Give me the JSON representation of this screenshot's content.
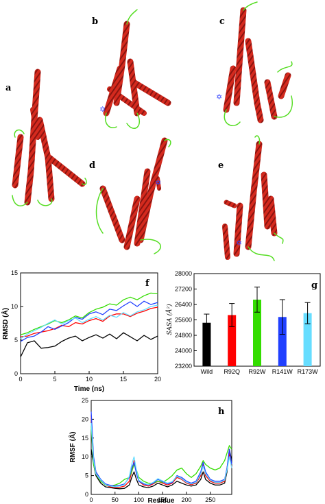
{
  "panel_labels": {
    "a": "a",
    "b": "b",
    "c": "c",
    "d": "d",
    "e": "e",
    "f": "f",
    "g": "g",
    "h": "h"
  },
  "colors": {
    "wild": "#000000",
    "r92q": "#ff0000",
    "r92w": "#33dd00",
    "r141w": "#2040ff",
    "r173w": "#66ddff",
    "helix": "#d42a1e",
    "loop": "#55dd22",
    "mark": "#3344ff"
  },
  "icons": {
    "structure": "protein-ribbon-icon",
    "mutation": "mutation-star-icon"
  },
  "chart_data": [
    {
      "id": "rmsd",
      "type": "line",
      "xlabel": "Time (ns)",
      "ylabel": "RMSD (Å)",
      "xlim": [
        0,
        20
      ],
      "ylim": [
        0,
        15
      ],
      "xticks": [
        0,
        5,
        10,
        15,
        20
      ],
      "yticks": [
        0,
        5,
        10,
        15
      ],
      "grid": false,
      "x": [
        0,
        1,
        2,
        3,
        4,
        5,
        6,
        7,
        8,
        9,
        10,
        11,
        12,
        13,
        14,
        15,
        16,
        17,
        18,
        19,
        20
      ],
      "series": [
        {
          "name": "Wild",
          "color": "#000000",
          "values": [
            2.5,
            4.6,
            4.9,
            3.8,
            3.9,
            4.1,
            4.8,
            5.3,
            5.6,
            4.9,
            5.4,
            5.8,
            5.3,
            5.9,
            5.2,
            6.1,
            5.5,
            4.9,
            5.7,
            5.1,
            5.6
          ]
        },
        {
          "name": "R92Q",
          "color": "#ff0000",
          "values": [
            5.5,
            5.6,
            6.0,
            6.2,
            6.4,
            6.7,
            7.2,
            7.0,
            7.6,
            7.4,
            7.9,
            8.2,
            7.8,
            8.6,
            8.9,
            8.9,
            8.5,
            9.0,
            9.3,
            9.7,
            9.9
          ]
        },
        {
          "name": "R92W",
          "color": "#33dd00",
          "values": [
            5.8,
            6.1,
            6.6,
            7.0,
            7.4,
            7.9,
            7.6,
            8.0,
            8.6,
            8.3,
            9.1,
            9.6,
            9.9,
            10.4,
            10.2,
            11.0,
            11.4,
            11.0,
            11.6,
            12.0,
            11.9
          ]
        },
        {
          "name": "R141W",
          "color": "#2040ff",
          "values": [
            4.8,
            5.4,
            5.6,
            6.2,
            7.0,
            6.6,
            7.1,
            7.6,
            8.4,
            8.1,
            8.9,
            9.2,
            8.8,
            9.6,
            9.4,
            10.1,
            10.7,
            10.0,
            10.8,
            10.3,
            10.6
          ]
        },
        {
          "name": "R173W",
          "color": "#66ddff",
          "values": [
            5.2,
            5.9,
            6.4,
            6.9,
            7.5,
            8.0,
            7.4,
            7.9,
            8.3,
            7.6,
            8.1,
            8.5,
            8.0,
            8.7,
            8.4,
            9.1,
            8.6,
            9.2,
            9.5,
            10.0,
            10.2
          ]
        }
      ]
    },
    {
      "id": "sasa",
      "type": "bar",
      "ylabel": "SASA (Å²)",
      "ylim": [
        23200,
        28000
      ],
      "yticks": [
        23200,
        24000,
        24800,
        25600,
        26400,
        27200,
        28000
      ],
      "categories": [
        "Wild",
        "R92Q",
        "R92W",
        "R141W",
        "R173W"
      ],
      "values": [
        25450,
        25850,
        26650,
        25750,
        25950
      ],
      "errors": [
        450,
        600,
        650,
        900,
        550
      ],
      "colors": [
        "#000000",
        "#ff0000",
        "#33dd00",
        "#2040ff",
        "#66ddff"
      ]
    },
    {
      "id": "rmsf",
      "type": "line",
      "xlabel": "Residue",
      "ylabel": "RMSF (Å)",
      "xlim": [
        0,
        295
      ],
      "ylim": [
        0,
        25
      ],
      "xticks": [
        0,
        50,
        100,
        150,
        200,
        250
      ],
      "yticks": [
        0,
        5,
        10,
        15,
        20,
        25
      ],
      "grid": false,
      "x": [
        0,
        5,
        10,
        20,
        30,
        40,
        50,
        60,
        70,
        80,
        85,
        90,
        95,
        100,
        110,
        120,
        130,
        140,
        150,
        160,
        170,
        180,
        190,
        200,
        210,
        220,
        230,
        235,
        240,
        250,
        260,
        270,
        280,
        285,
        290,
        295
      ],
      "series": [
        {
          "name": "Wild",
          "color": "#000000",
          "values": [
            12,
            8,
            5,
            3,
            2,
            1.8,
            1.6,
            1.5,
            1.6,
            2.5,
            4.5,
            6,
            4,
            2.5,
            2,
            1.8,
            2.2,
            3,
            2.5,
            2,
            2.5,
            3.5,
            3,
            2.5,
            2.2,
            2.5,
            4,
            6,
            4,
            3,
            2.5,
            2.5,
            3,
            6,
            12,
            9
          ]
        },
        {
          "name": "R92Q",
          "color": "#ff0000",
          "values": [
            21,
            9,
            6,
            3.5,
            2.5,
            2,
            1.8,
            1.9,
            2.2,
            3.5,
            6,
            9,
            6,
            3.5,
            2.5,
            2.2,
            2.8,
            3.5,
            3,
            2.5,
            3,
            4.5,
            4,
            3,
            2.6,
            3,
            5,
            8,
            5,
            3.5,
            3,
            3,
            3.5,
            7,
            11,
            7
          ]
        },
        {
          "name": "R92W",
          "color": "#33dd00",
          "values": [
            18,
            8,
            5.5,
            3.5,
            2.5,
            2.2,
            2.5,
            3,
            4,
            4.5,
            6,
            8,
            6.5,
            4.5,
            3.5,
            3,
            3,
            3.5,
            3.2,
            4,
            5,
            6.5,
            7,
            5.5,
            4.5,
            5.5,
            7.5,
            9,
            8,
            7,
            6.5,
            7,
            9,
            11,
            13,
            12
          ]
        },
        {
          "name": "R141W",
          "color": "#2040ff",
          "values": [
            22,
            10,
            6,
            4,
            2.8,
            2.4,
            2.2,
            2.4,
            2.8,
            4.5,
            7,
            8.5,
            5.5,
            3.5,
            2.8,
            2.5,
            3,
            4,
            3.4,
            2.8,
            3.2,
            5,
            4.5,
            3.5,
            3,
            3.5,
            6,
            8.5,
            6,
            4,
            3.5,
            3.5,
            4,
            7,
            12,
            8
          ]
        },
        {
          "name": "R173W",
          "color": "#66ddff",
          "values": [
            19,
            9,
            5.5,
            3.8,
            2.6,
            2.2,
            2,
            2.2,
            2.6,
            4.8,
            8,
            10,
            6.5,
            3.8,
            3,
            2.6,
            3.2,
            4.2,
            3.6,
            3,
            3.4,
            4.8,
            4.2,
            3.2,
            2.8,
            3.2,
            5.5,
            7.5,
            5.5,
            3.8,
            3.2,
            3.2,
            3.8,
            6.5,
            10,
            7
          ]
        }
      ]
    }
  ]
}
